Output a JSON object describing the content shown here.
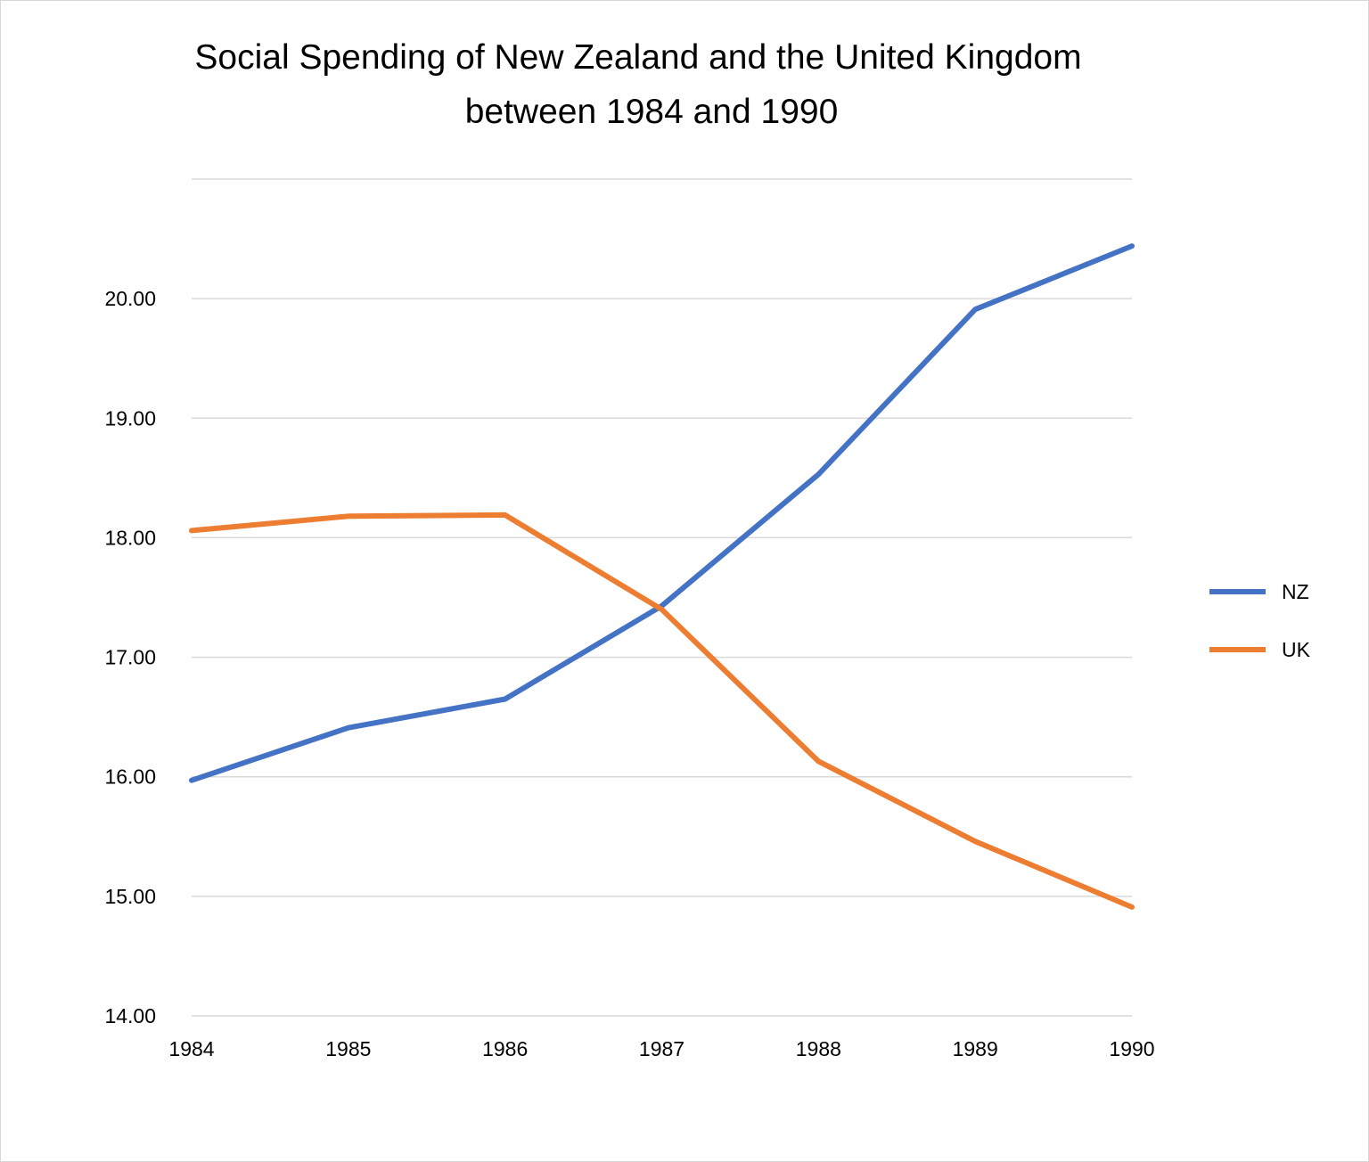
{
  "chart_data": {
    "type": "line",
    "title": "Social Spending of New Zealand and the United Kingdom",
    "subtitle": "between 1984 and 1990",
    "xlabel": "",
    "ylabel": "",
    "x": [
      "1984",
      "1985",
      "1986",
      "1987",
      "1988",
      "1989",
      "1990"
    ],
    "ylim": [
      14,
      21
    ],
    "yticks": [
      "14.00",
      "15.00",
      "16.00",
      "17.00",
      "18.00",
      "19.00",
      "20.00"
    ],
    "grid": true,
    "legend_position": "right",
    "series": [
      {
        "name": "NZ",
        "color": "#4472c4",
        "values": [
          15.97,
          16.41,
          16.65,
          17.43,
          18.53,
          19.91,
          20.44
        ]
      },
      {
        "name": "UK",
        "color": "#ed7d31",
        "values": [
          18.06,
          18.18,
          18.19,
          17.4,
          16.13,
          15.46,
          14.91
        ]
      }
    ]
  }
}
